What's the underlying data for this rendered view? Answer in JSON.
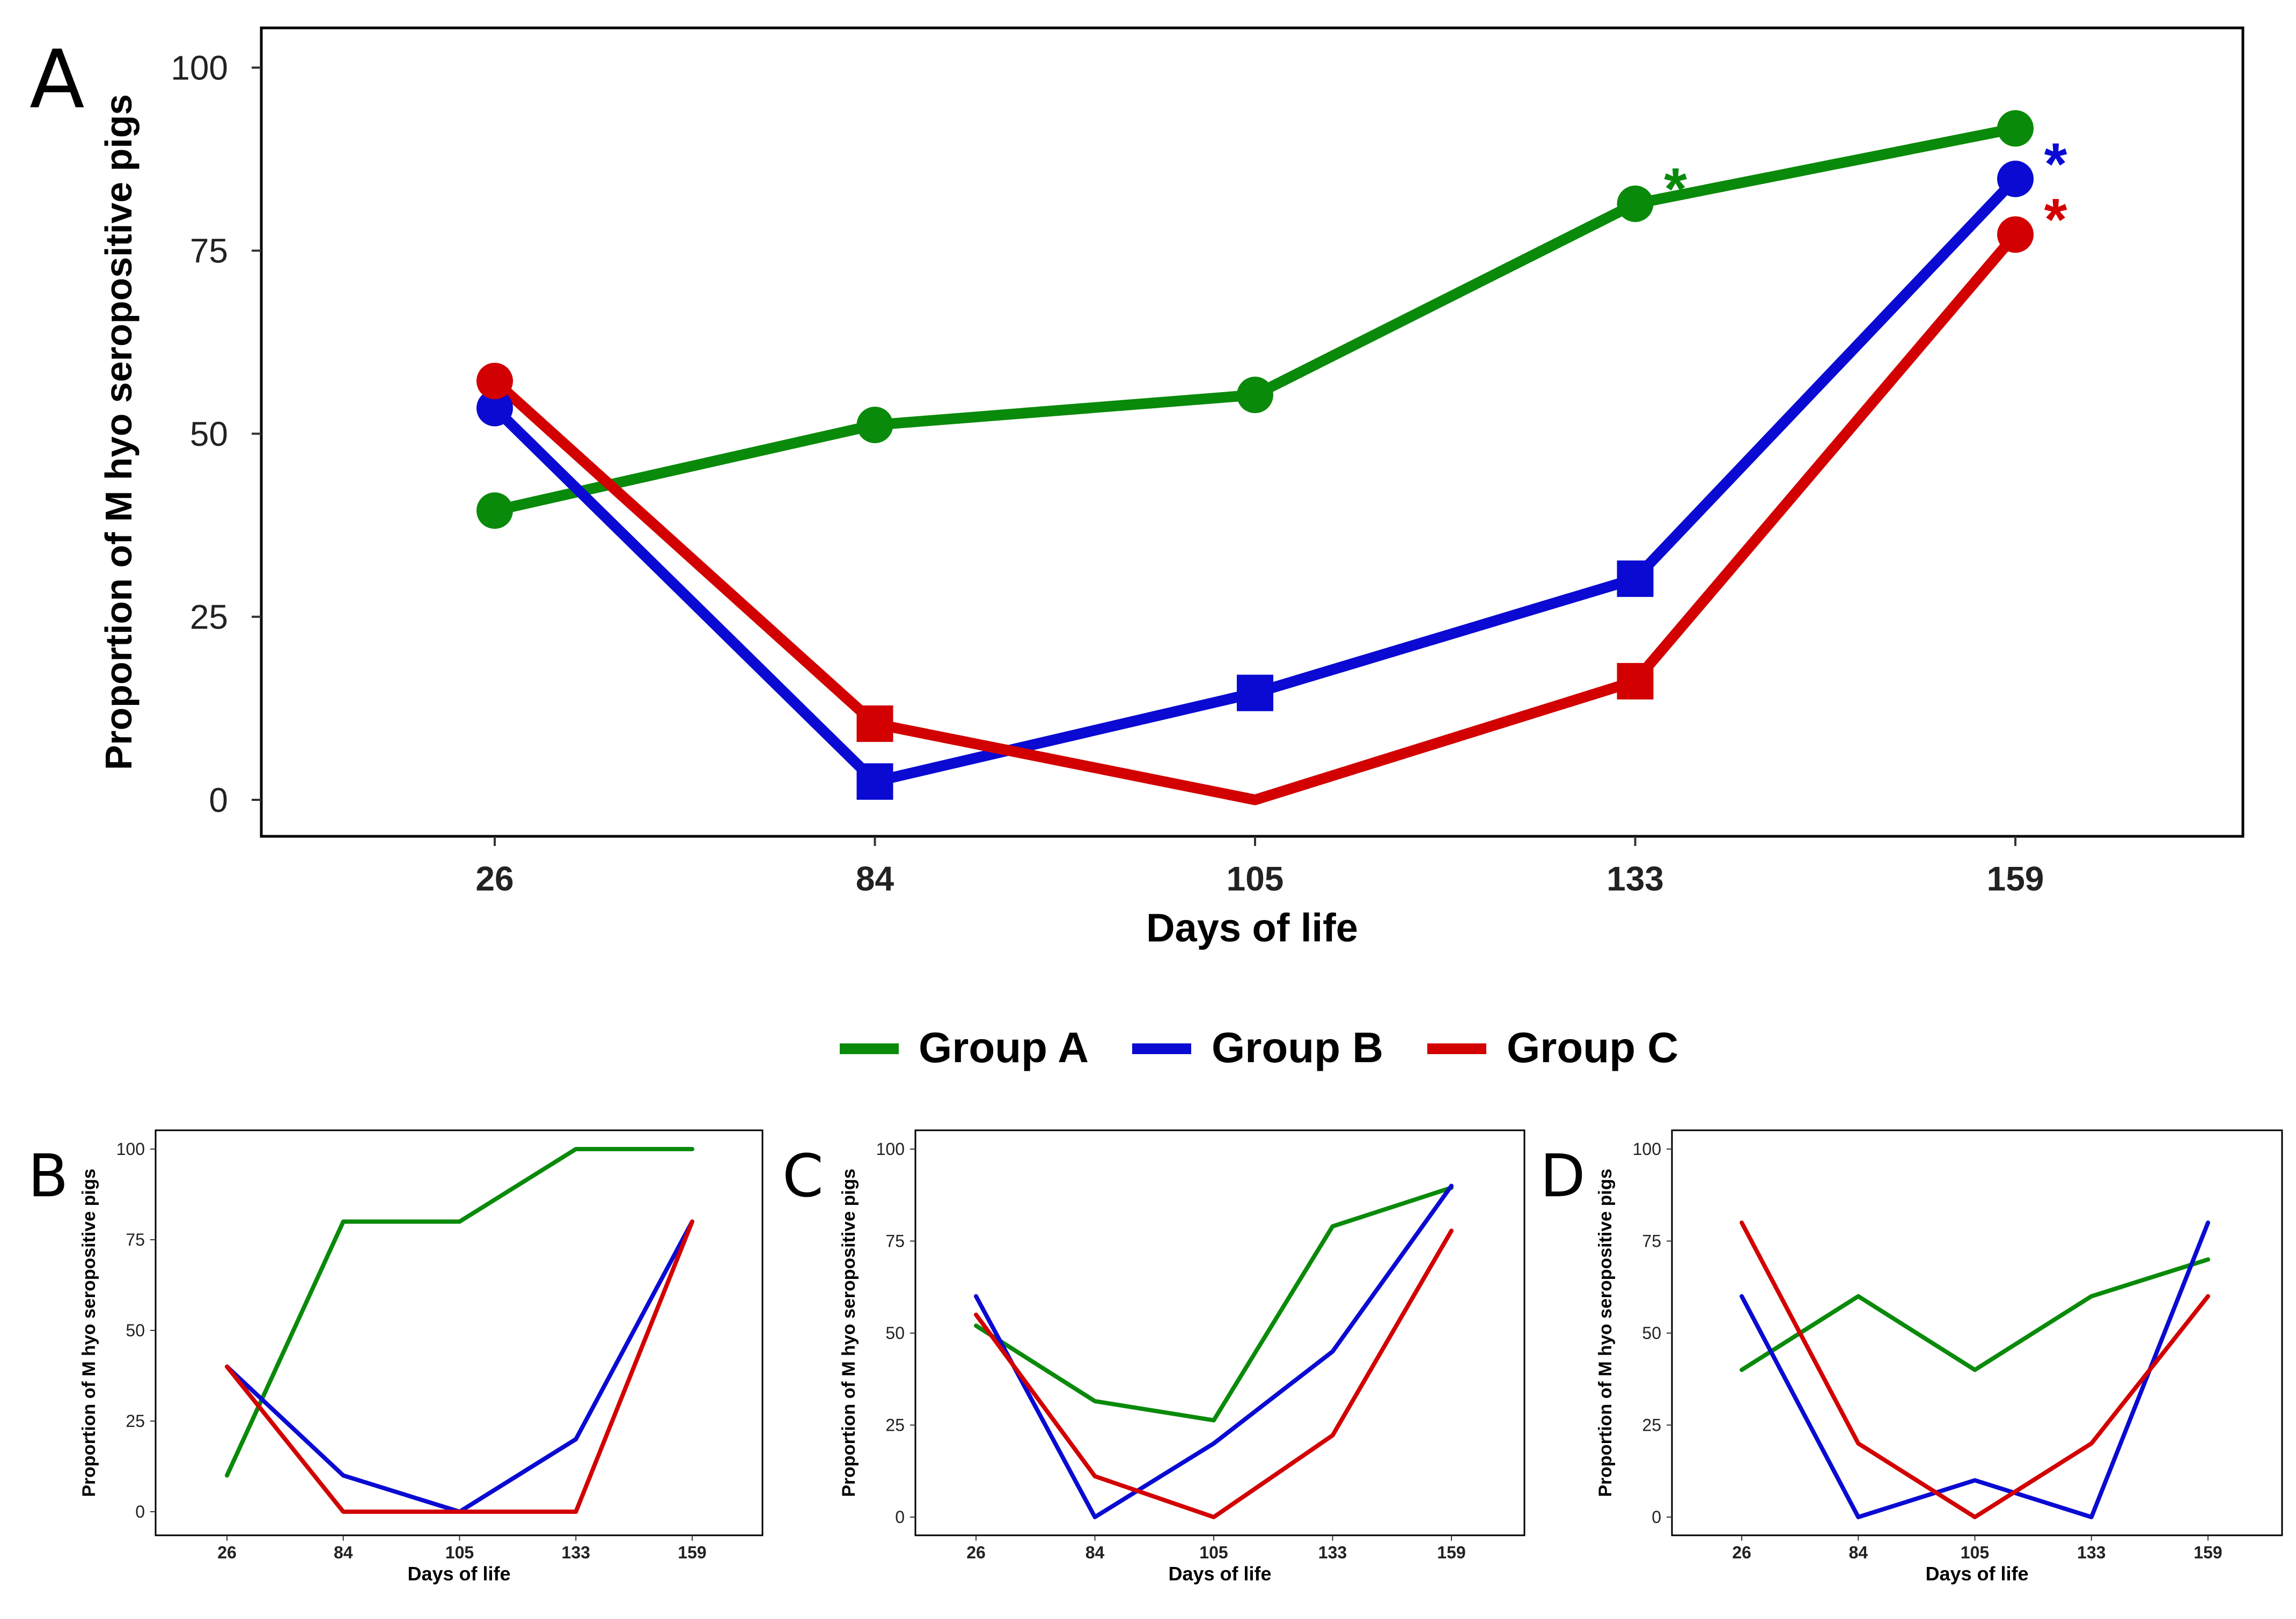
{
  "colors": {
    "group_a": "#0a8a0a",
    "group_b": "#0a0ad2",
    "group_c": "#d20000"
  },
  "legend": {
    "entries": [
      "Group A",
      "Group B",
      "Group C"
    ]
  },
  "chart_data": [
    {
      "panel": "A",
      "type": "line",
      "xlabel": "Days of life",
      "ylabel": "Proportion of M hyo seropositive pigs",
      "categories": [
        "26",
        "84",
        "105",
        "133",
        "159"
      ],
      "ylim": [
        0,
        100
      ],
      "yticks": [
        0,
        25,
        50,
        75,
        100
      ],
      "series": [
        {
          "name": "Group A",
          "values": [
            39.5,
            51.2,
            55.3,
            81.4,
            91.7
          ],
          "markers": [
            "circle",
            "circle",
            "circle",
            "circle",
            "circle"
          ]
        },
        {
          "name": "Group B",
          "values": [
            53.5,
            2.5,
            14.6,
            30.2,
            84.8
          ],
          "markers": [
            "circle",
            "square",
            "square",
            "square",
            "circle"
          ]
        },
        {
          "name": "Group C",
          "values": [
            57.2,
            10.4,
            0,
            16.2,
            77.2
          ],
          "markers": [
            "circle",
            "square",
            "none",
            "square",
            "circle"
          ]
        }
      ],
      "annotations": [
        {
          "text": "*",
          "series": "Group A",
          "category": "133"
        },
        {
          "text": "*",
          "series": "Group B",
          "category": "159"
        },
        {
          "text": "*",
          "series": "Group C",
          "category": "159"
        }
      ]
    },
    {
      "panel": "B",
      "type": "line",
      "xlabel": "Days of life",
      "ylabel": "Proportion of M hyo seropositive pigs",
      "categories": [
        "26",
        "84",
        "105",
        "133",
        "159"
      ],
      "ylim": [
        0,
        100
      ],
      "yticks": [
        0,
        25,
        50,
        75,
        100
      ],
      "series": [
        {
          "name": "Group A",
          "values": [
            10,
            80,
            80,
            100,
            100
          ]
        },
        {
          "name": "Group B",
          "values": [
            40,
            10,
            0,
            20,
            80
          ]
        },
        {
          "name": "Group C",
          "values": [
            40,
            0,
            0,
            0,
            80
          ]
        }
      ]
    },
    {
      "panel": "C",
      "type": "line",
      "xlabel": "Days of life",
      "ylabel": "Proportion of M hyo seropositive pigs",
      "categories": [
        "26",
        "84",
        "105",
        "133",
        "159"
      ],
      "ylim": [
        0,
        100
      ],
      "yticks": [
        0,
        25,
        50,
        75,
        100
      ],
      "series": [
        {
          "name": "Group A",
          "values": [
            52,
            31.5,
            26.3,
            79,
            89.5
          ]
        },
        {
          "name": "Group B",
          "values": [
            60,
            0,
            20,
            45,
            90
          ]
        },
        {
          "name": "Group C",
          "values": [
            55,
            11.1,
            0,
            22.2,
            77.8
          ]
        }
      ]
    },
    {
      "panel": "D",
      "type": "line",
      "xlabel": "Days of life",
      "ylabel": "Proportion of M hyo seropositive pigs",
      "categories": [
        "26",
        "84",
        "105",
        "133",
        "159"
      ],
      "ylim": [
        0,
        100
      ],
      "yticks": [
        0,
        25,
        50,
        75,
        100
      ],
      "series": [
        {
          "name": "Group A",
          "values": [
            40,
            60,
            40,
            60,
            70
          ]
        },
        {
          "name": "Group B",
          "values": [
            60,
            0,
            10,
            0,
            80
          ]
        },
        {
          "name": "Group C",
          "values": [
            80,
            20,
            0,
            20,
            60
          ]
        }
      ]
    }
  ]
}
